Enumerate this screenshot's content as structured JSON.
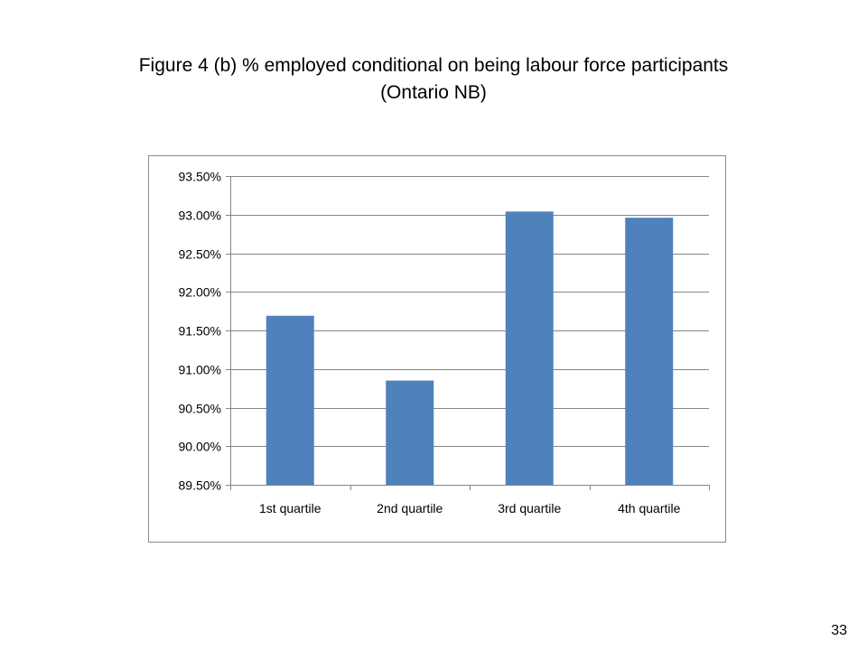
{
  "slide": {
    "title_line1": "Figure 4 (b) % employed conditional on being labour force participants",
    "title_line2": "(Ontario NB)",
    "page_number": "33"
  },
  "chart_data": {
    "type": "bar",
    "title": "",
    "xlabel": "",
    "ylabel": "",
    "categories": [
      "1st quartile",
      "2nd quartile",
      "3rd quartile",
      "4th quartile"
    ],
    "values": [
      91.69,
      90.85,
      93.04,
      92.96
    ],
    "ylim": [
      89.5,
      93.5
    ],
    "yticks": [
      89.5,
      90.0,
      90.5,
      91.0,
      91.5,
      92.0,
      92.5,
      93.0,
      93.5
    ],
    "ytick_labels": [
      "89.50%",
      "90.00%",
      "90.50%",
      "91.00%",
      "91.50%",
      "92.00%",
      "92.50%",
      "93.00%",
      "93.50%"
    ],
    "grid": true,
    "legend": "none",
    "bar_color": "#4f81bd",
    "grid_color": "#868686"
  }
}
